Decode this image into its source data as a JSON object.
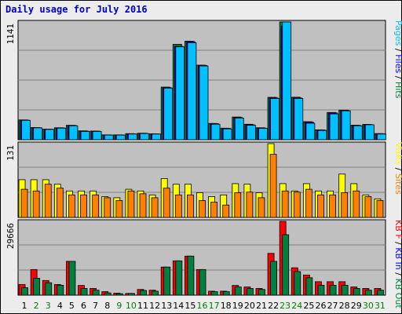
{
  "title": "Daily usage for July 2016",
  "chart_data": [
    {
      "type": "bar",
      "name": "pages-files-hits",
      "max_label": "1141",
      "legend": [
        {
          "text": "Pages",
          "color": "#00c0ff"
        },
        {
          "text": "Files",
          "color": "#0000ff"
        },
        {
          "text": "Hits",
          "color": "#008040"
        }
      ],
      "categories": [
        "1",
        "2",
        "3",
        "4",
        "5",
        "6",
        "7",
        "8",
        "9",
        "10",
        "11",
        "12",
        "13",
        "14",
        "15",
        "16",
        "17",
        "18",
        "19",
        "20",
        "21",
        "22",
        "23",
        "24",
        "25",
        "26",
        "27",
        "28",
        "29",
        "30",
        "31"
      ],
      "ylim": [
        0,
        1141
      ],
      "series": [
        {
          "name": "Hits",
          "values": [
            192,
            118,
            103,
            116,
            140,
            86,
            84,
            47,
            47,
            59,
            63,
            58,
            510,
            925,
            955,
            723,
            158,
            112,
            220,
            150,
            116,
            411,
            1141,
            412,
            175,
            96,
            264,
            287,
            141,
            149,
            60
          ]
        },
        {
          "name": "Files",
          "values": [
            190,
            117,
            102,
            115,
            138,
            84,
            83,
            46,
            46,
            58,
            62,
            56,
            505,
            905,
            950,
            720,
            155,
            110,
            215,
            145,
            113,
            405,
            1100,
            405,
            170,
            94,
            260,
            284,
            138,
            146,
            58
          ]
        },
        {
          "name": "Pages",
          "values": [
            188,
            115,
            100,
            112,
            135,
            80,
            80,
            45,
            45,
            55,
            60,
            55,
            500,
            900,
            940,
            715,
            150,
            105,
            210,
            140,
            110,
            400,
            1141,
            400,
            160,
            90,
            250,
            280,
            135,
            145,
            55
          ]
        }
      ]
    },
    {
      "type": "bar",
      "name": "visits-sites",
      "max_label": "131",
      "legend": [
        {
          "text": "Visits",
          "color": "#ffff00"
        },
        {
          "text": "Sites",
          "color": "#ff8000"
        }
      ],
      "categories": [
        "1",
        "2",
        "3",
        "4",
        "5",
        "6",
        "7",
        "8",
        "9",
        "10",
        "11",
        "12",
        "13",
        "14",
        "15",
        "16",
        "17",
        "18",
        "19",
        "20",
        "21",
        "22",
        "23",
        "24",
        "25",
        "26",
        "27",
        "28",
        "29",
        "30",
        "31"
      ],
      "ylim": [
        0,
        131
      ],
      "series": [
        {
          "name": "Visits",
          "values": [
            67,
            67,
            67,
            59,
            47,
            47,
            47,
            37,
            35,
            50,
            47,
            40,
            69,
            59,
            59,
            44,
            37,
            40,
            60,
            59,
            44,
            131,
            60,
            47,
            60,
            47,
            47,
            77,
            60,
            40,
            33
          ]
        },
        {
          "name": "Sites",
          "values": [
            50,
            47,
            59,
            52,
            40,
            40,
            40,
            35,
            30,
            47,
            42,
            35,
            52,
            40,
            40,
            30,
            27,
            22,
            44,
            45,
            35,
            112,
            47,
            45,
            50,
            40,
            40,
            44,
            47,
            37,
            30
          ]
        }
      ]
    },
    {
      "type": "bar",
      "name": "kbf-kbin-kbout",
      "max_label": "29666",
      "legend": [
        {
          "text": "KB F",
          "color": "#ff0000"
        },
        {
          "text": "KB In",
          "color": "#0000ff"
        },
        {
          "text": "KB Out",
          "color": "#008040"
        }
      ],
      "categories": [
        "1",
        "2",
        "3",
        "4",
        "5",
        "6",
        "7",
        "8",
        "9",
        "10",
        "11",
        "12",
        "13",
        "14",
        "15",
        "16",
        "17",
        "18",
        "19",
        "20",
        "21",
        "22",
        "23",
        "24",
        "25",
        "26",
        "27",
        "28",
        "29",
        "30",
        "31"
      ],
      "ylim": [
        0,
        29666
      ],
      "series": [
        {
          "name": "KB F",
          "values": [
            4300,
            10300,
            5900,
            4300,
            13600,
            3900,
            2700,
            1400,
            800,
            700,
            2300,
            2000,
            11300,
            13800,
            15700,
            10300,
            1600,
            1600,
            3900,
            3300,
            2700,
            16800,
            29666,
            11000,
            8100,
            5400,
            5400,
            5400,
            3300,
            2700,
            2700
          ]
        },
        {
          "name": "KB Out",
          "values": [
            3000,
            6800,
            5000,
            4000,
            13600,
            2700,
            2000,
            900,
            600,
            700,
            1900,
            1600,
            11300,
            13800,
            15700,
            10300,
            1400,
            1400,
            3300,
            2700,
            2300,
            13600,
            24300,
            9500,
            7000,
            4000,
            4000,
            4000,
            2700,
            2000,
            2000
          ]
        }
      ]
    }
  ],
  "x_day_colors": {
    "weekday": "#000000",
    "weekend": "#008000"
  }
}
